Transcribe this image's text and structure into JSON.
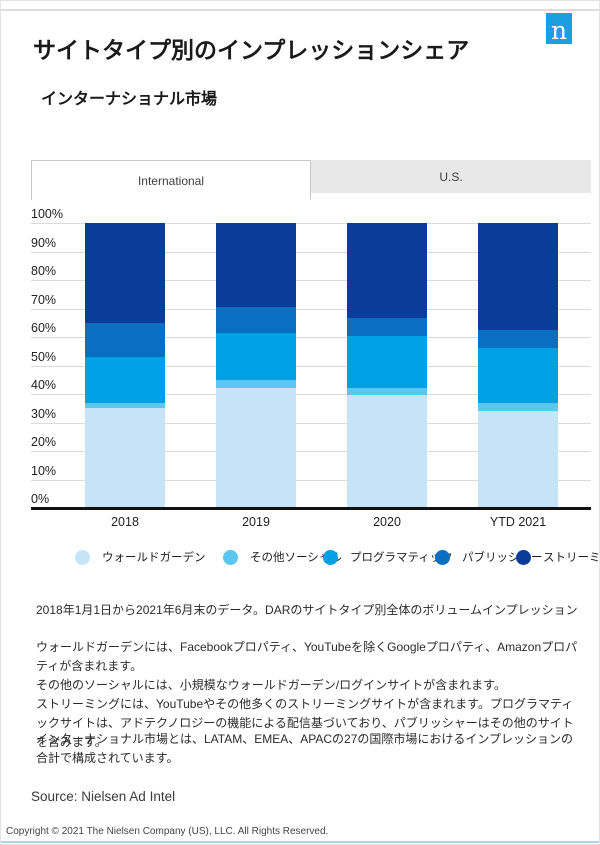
{
  "header": {
    "title": "サイトタイプ別のインプレッションシェア",
    "subtitle": "インターナショナル市場",
    "logo_letter": "n",
    "logo_color": "#1A9FE0"
  },
  "tabs": [
    {
      "label": "International",
      "active": true
    },
    {
      "label": "U.S.",
      "active": false
    }
  ],
  "chart_data": {
    "type": "bar",
    "stacked": true,
    "title": "サイトタイプ別のインプレッションシェア (インターナショナル市場)",
    "categories": [
      "2018",
      "2019",
      "2020",
      "YTD 2021"
    ],
    "series": [
      {
        "name": "ウォールドガーデン",
        "key": "walled-garden",
        "color": "#C5E5F7",
        "values": [
          35,
          42,
          39.5,
          34
        ]
      },
      {
        "name": "その他ソーシャル",
        "key": "other-social",
        "color": "#5BC6F0",
        "values": [
          2,
          3,
          2.5,
          3
        ]
      },
      {
        "name": "プログラマティック",
        "key": "programmatic",
        "color": "#00A0E4",
        "values": [
          16,
          16.5,
          18.5,
          19
        ]
      },
      {
        "name": "パブリッシャー",
        "key": "publisher",
        "color": "#0A6FC1",
        "values": [
          12,
          9,
          6,
          6.5
        ]
      },
      {
        "name": "ストリーミング",
        "key": "streaming",
        "color": "#0B3C9B",
        "values": [
          35,
          29.5,
          33.5,
          37.5
        ]
      }
    ],
    "yticks": [
      "0%",
      "10%",
      "20%",
      "30%",
      "40%",
      "50%",
      "60%",
      "70%",
      "80%",
      "90%",
      "100%"
    ],
    "ylim": [
      0,
      100
    ],
    "grid": true,
    "legend_position": "bottom"
  },
  "notes": {
    "line1": "2018年1月1日から2021年6月末のデータ。DARのサイトタイプ別全体のボリュームインプレッション",
    "paragraph": [
      "ウォールドガーデンには、Facebookプロパティ、YouTubeを除くGoogleプロパティ、Amazonプロパティが含まれます。",
      "その他のソーシャルには、小規模なウォールドガーデン/ログインサイトが含まれます。",
      "ストリーミングには、YouTubeやその他多くのストリーミングサイトが含まれます。プログラマティックサイトは、アドテクノロジーの機能による配信基づいており、パブリッシャーはその他のサイトを含みます。"
    ],
    "line2": "インターナショナル市場とは、LATAM、EMEA、APACの27の国際市場におけるインプレッションの合計で構成されています。"
  },
  "footer": {
    "source": "Source: Nielsen Ad Intel",
    "copyright": "Copyright © 2021 The Nielsen Company (US), LLC. All Rights Reserved."
  }
}
